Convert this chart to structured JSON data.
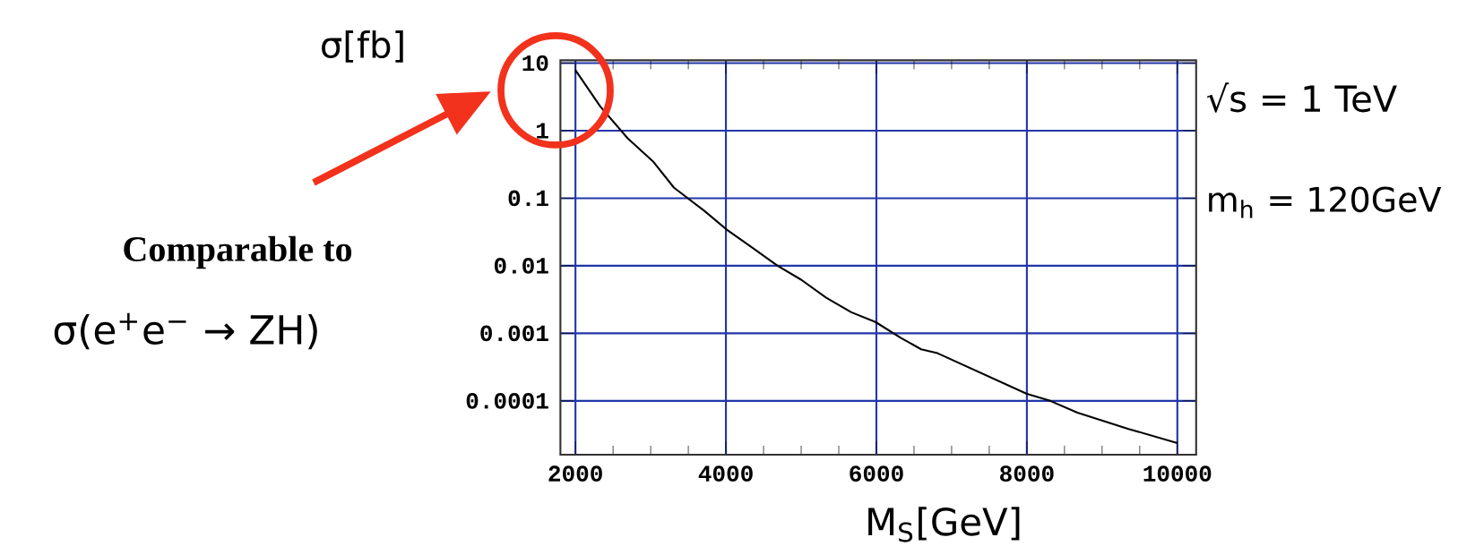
{
  "chart_data": {
    "type": "line",
    "xlabel": "M$_{S}$[GeV]",
    "ylabel": "σ[fb]",
    "annotations": [
      "√s = 1 TeV",
      "m$_{h}$ = 120GeV",
      "Comparable to",
      "σ(e$^{+}$e$^{−}$ → ZH)"
    ],
    "log": "y",
    "grid": true,
    "xlim": [
      1800,
      10250
    ],
    "ylim": [
      1.6e-05,
      11
    ],
    "xticks": [
      2000,
      4000,
      6000,
      8000,
      10000
    ],
    "yticks": [
      10,
      1,
      0.1,
      0.01,
      0.001,
      0.0001
    ],
    "series": [
      {
        "color": "#000000",
        "x": [
          2000,
          2329,
          2694,
          3039,
          3310,
          3714,
          4020,
          4341,
          4686,
          5000,
          5333,
          5667,
          5988,
          6322,
          6595,
          6812,
          8000,
          8311,
          8671,
          9350,
          10000
        ],
        "values": [
          7.85,
          2.29,
          0.77,
          0.343,
          0.143,
          0.0648,
          0.0336,
          0.0189,
          0.01,
          0.00622,
          0.00336,
          0.00205,
          0.00147,
          0.00086,
          0.00058,
          0.000508,
          0.000127,
          0.0001,
          6.7e-05,
          3.85e-05,
          2.38e-05
        ]
      }
    ]
  }
}
